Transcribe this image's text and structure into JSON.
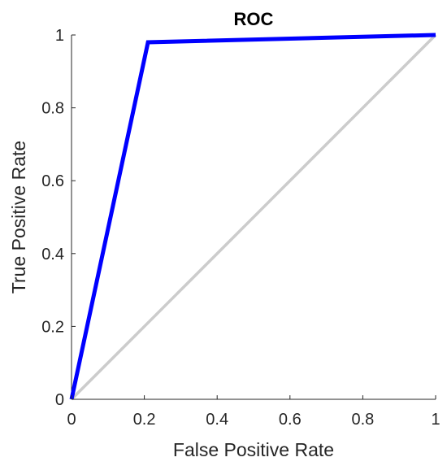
{
  "chart_data": {
    "type": "line",
    "title": "ROC",
    "xlabel": "False Positive Rate",
    "ylabel": "True Positive Rate",
    "xlim": [
      0,
      1
    ],
    "ylim": [
      0,
      1
    ],
    "grid": false,
    "x_ticks": [
      0,
      0.2,
      0.4,
      0.6,
      0.8,
      1
    ],
    "y_ticks": [
      0,
      0.2,
      0.4,
      0.6,
      0.8,
      1
    ],
    "x_tick_labels": [
      "0",
      "0.2",
      "0.4",
      "0.6",
      "0.8",
      "1"
    ],
    "y_tick_labels": [
      "0",
      "0.2",
      "0.4",
      "0.6",
      "0.8",
      "1"
    ],
    "series": [
      {
        "x": [
          0,
          0.21,
          1
        ],
        "y": [
          0,
          0.98,
          1
        ],
        "color": "#0000ff"
      },
      {
        "x": [
          0,
          1
        ],
        "y": [
          0,
          1
        ],
        "color": "#cccccc"
      }
    ]
  }
}
